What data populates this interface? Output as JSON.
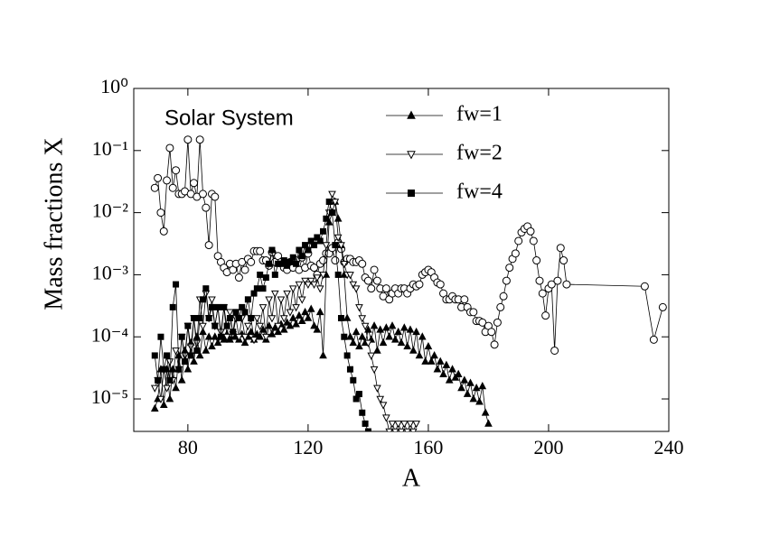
{
  "chart_data": {
    "type": "line",
    "xlabel": "A",
    "ylabel": "Mass fractions X",
    "xlim": [
      62,
      240
    ],
    "xticks": [
      80,
      120,
      160,
      200,
      240
    ],
    "ylim": [
      3e-06,
      1
    ],
    "yscale": "log",
    "yticks": [
      {
        "value": 1,
        "label": "10⁰"
      },
      {
        "value": 0.1,
        "label": "10⁻¹"
      },
      {
        "value": 0.01,
        "label": "10⁻²"
      },
      {
        "value": 0.001,
        "label": "10⁻³"
      },
      {
        "value": 0.0001,
        "label": "10⁻⁴"
      },
      {
        "value": 1e-05,
        "label": "10⁻⁵"
      }
    ],
    "series": [
      {
        "name": "Solar System",
        "color": "#000",
        "marker": "circle-open",
        "x": [
          69,
          70,
          71,
          72,
          73,
          74,
          75,
          76,
          77,
          78,
          79,
          80,
          81,
          82,
          83,
          84,
          85,
          86,
          87,
          88,
          89,
          90,
          91,
          92,
          93,
          94,
          95,
          96,
          97,
          98,
          99,
          100,
          101,
          102,
          103,
          104,
          105,
          106,
          107,
          108,
          109,
          110,
          111,
          112,
          113,
          114,
          115,
          116,
          117,
          118,
          119,
          120,
          121,
          122,
          123,
          124,
          125,
          126,
          127,
          128,
          129,
          130,
          131,
          132,
          133,
          134,
          135,
          136,
          137,
          138,
          139,
          140,
          141,
          142,
          143,
          144,
          145,
          146,
          147,
          148,
          149,
          150,
          151,
          152,
          153,
          154,
          155,
          156,
          157,
          158,
          159,
          160,
          161,
          162,
          163,
          164,
          165,
          166,
          167,
          168,
          169,
          170,
          171,
          172,
          173,
          174,
          175,
          176,
          177,
          178,
          179,
          180,
          181,
          182,
          183,
          184,
          185,
          186,
          187,
          188,
          189,
          190,
          191,
          192,
          193,
          194,
          195,
          196,
          197,
          198,
          199,
          200,
          201,
          202,
          203,
          204,
          205,
          206,
          232,
          235,
          238
        ],
        "values": [
          0.025,
          0.036,
          0.01,
          0.005,
          0.033,
          0.11,
          0.025,
          0.048,
          0.02,
          0.02,
          0.022,
          0.15,
          0.02,
          0.03,
          0.018,
          0.15,
          0.02,
          0.012,
          0.003,
          0.02,
          0.018,
          0.002,
          0.0016,
          0.0013,
          0.0011,
          0.0015,
          0.0012,
          0.0015,
          0.0009,
          0.0016,
          0.0012,
          0.0018,
          0.0016,
          0.0024,
          0.0024,
          0.0024,
          0.0017,
          0.0017,
          0.0014,
          0.0023,
          0.0016,
          0.002,
          0.0016,
          0.0013,
          0.0012,
          0.0016,
          0.0013,
          0.0017,
          0.0012,
          0.0019,
          0.0013,
          0.0022,
          0.0014,
          0.0013,
          0.001,
          0.0015,
          0.0017,
          0.0022,
          0.0022,
          0.0027,
          0.0017,
          0.0033,
          0.0026,
          0.0016,
          0.0018,
          0.0018,
          0.0016,
          0.0016,
          0.0017,
          0.0015,
          0.0009,
          0.0008,
          0.0006,
          0.0012,
          0.0008,
          0.0006,
          0.00045,
          0.0006,
          0.0004,
          0.0005,
          0.0006,
          0.0005,
          0.0006,
          0.0006,
          0.0005,
          0.0006,
          0.0007,
          0.00065,
          0.0007,
          0.001,
          0.0011,
          0.0012,
          0.0011,
          0.0009,
          0.00075,
          0.0007,
          0.0005,
          0.0004,
          0.0004,
          0.00045,
          0.0004,
          0.0004,
          0.0003,
          0.0004,
          0.0003,
          0.00025,
          0.00025,
          0.00018,
          0.00018,
          0.00017,
          0.00012,
          0.00015,
          0.00012,
          7.5e-05,
          0.00017,
          0.0003,
          0.00045,
          0.0008,
          0.0013,
          0.0018,
          0.0022,
          0.0035,
          0.0048,
          0.0055,
          0.006,
          0.005,
          0.0035,
          0.0017,
          0.0008,
          0.0005,
          0.00022,
          0.0006,
          0.0007,
          6e-05,
          0.0008,
          0.0027,
          0.0017,
          0.0007,
          0.00065,
          9e-05,
          0.0003
        ]
      },
      {
        "name": "fw=1",
        "color": "#000",
        "marker": "triangle-filled",
        "x": [
          69,
          70,
          71,
          72,
          73,
          74,
          75,
          76,
          77,
          78,
          79,
          80,
          81,
          82,
          83,
          84,
          85,
          86,
          87,
          88,
          89,
          90,
          91,
          92,
          93,
          94,
          95,
          96,
          97,
          98,
          99,
          100,
          101,
          102,
          103,
          104,
          105,
          106,
          107,
          108,
          109,
          110,
          111,
          112,
          113,
          114,
          115,
          116,
          117,
          118,
          119,
          120,
          121,
          122,
          123,
          124,
          125,
          126,
          127,
          128,
          129,
          130,
          131,
          132,
          133,
          134,
          135,
          136,
          137,
          138,
          139,
          140,
          141,
          142,
          143,
          144,
          145,
          146,
          147,
          148,
          149,
          150,
          151,
          152,
          153,
          154,
          155,
          156,
          157,
          158,
          159,
          160,
          161,
          162,
          163,
          164,
          165,
          166,
          167,
          168,
          169,
          170,
          171,
          172,
          173,
          174,
          175,
          176,
          177,
          178,
          179,
          180
        ],
        "values": [
          7e-06,
          1e-05,
          3e-05,
          8e-06,
          3e-05,
          1e-05,
          3e-05,
          1.5e-05,
          5e-05,
          2e-05,
          6e-05,
          3e-05,
          8e-05,
          4e-05,
          0.0001,
          5e-05,
          0.00012,
          6e-05,
          0.0001,
          7e-05,
          0.0001,
          8e-05,
          0.0001,
          9e-05,
          0.00011,
          9e-05,
          0.0001,
          0.0001,
          9e-05,
          0.00011,
          8e-05,
          0.0001,
          0.00012,
          9e-05,
          0.00011,
          0.0001,
          0.00013,
          9e-05,
          0.00015,
          0.00011,
          0.00014,
          0.00012,
          0.00016,
          0.00013,
          0.00017,
          0.00015,
          0.0002,
          0.00016,
          0.00022,
          0.00018,
          0.00025,
          0.0002,
          0.00028,
          0.00015,
          0.00013,
          0.00025,
          5e-05,
          0.001,
          0.007,
          0.01,
          0.015,
          0.008,
          0.003,
          0.001,
          0.0002,
          0.0001,
          8e-05,
          0.00012,
          7e-05,
          0.0001,
          8e-05,
          0.00013,
          9e-05,
          0.00015,
          6e-05,
          0.00013,
          8e-05,
          0.00014,
          0.0001,
          0.00015,
          9e-05,
          0.00012,
          8e-05,
          0.00014,
          7e-05,
          0.00013,
          6e-05,
          0.00012,
          5e-05,
          0.0001,
          4e-05,
          7e-05,
          4e-05,
          5e-05,
          3e-05,
          4e-05,
          2.5e-05,
          3.5e-05,
          2e-05,
          3e-05,
          2.2e-05,
          2.5e-05,
          1.5e-05,
          2e-05,
          1.2e-05,
          1.8e-05,
          1e-05,
          1.5e-05,
          9e-06,
          1.6e-05,
          6e-06,
          4e-06
        ]
      },
      {
        "name": "fw=2",
        "color": "#000",
        "marker": "triangle-open-down",
        "x": [
          69,
          70,
          71,
          72,
          73,
          74,
          75,
          76,
          77,
          78,
          79,
          80,
          81,
          82,
          83,
          84,
          85,
          86,
          87,
          88,
          89,
          90,
          91,
          92,
          93,
          94,
          95,
          96,
          97,
          98,
          99,
          100,
          101,
          102,
          103,
          104,
          105,
          106,
          107,
          108,
          109,
          110,
          111,
          112,
          113,
          114,
          115,
          116,
          117,
          118,
          119,
          120,
          121,
          122,
          123,
          124,
          125,
          126,
          127,
          128,
          129,
          130,
          131,
          132,
          133,
          134,
          135,
          136,
          137,
          138,
          139,
          140,
          141,
          142,
          143,
          144,
          145,
          146,
          147,
          148,
          149,
          150,
          151,
          152,
          153,
          154,
          155,
          156
        ],
        "values": [
          1.5e-05,
          2e-05,
          1e-05,
          3e-05,
          1.5e-05,
          4e-05,
          2e-05,
          6e-05,
          3e-05,
          0.0001,
          5e-05,
          0.00015,
          7e-05,
          0.0002,
          8e-05,
          0.0004,
          0.00015,
          0.0005,
          0.0002,
          0.0004,
          0.00015,
          0.0003,
          0.00012,
          0.0003,
          0.0001,
          0.00025,
          0.00011,
          0.0002,
          0.0001,
          0.0002,
          0.0001,
          0.00015,
          0.0002,
          9e-05,
          0.0002,
          0.00015,
          0.0003,
          0.0001,
          0.0004,
          0.0002,
          0.0005,
          0.00015,
          0.0004,
          0.0002,
          0.0005,
          0.00025,
          0.0006,
          0.0003,
          0.0007,
          0.0004,
          0.0008,
          0.0007,
          0.0008,
          0.0007,
          0.0009,
          0.0006,
          0.001,
          0.003,
          0.01,
          0.02,
          0.015,
          0.004,
          0.003,
          0.0015,
          0.001,
          0.001,
          0.0007,
          0.0006,
          0.0003,
          0.0002,
          0.00015,
          8e-05,
          5e-05,
          3e-05,
          1.5e-05,
          1e-05,
          8e-06,
          5e-06,
          3e-06,
          4e-06,
          3e-06,
          4e-06,
          3e-06,
          4e-06,
          3e-06,
          4e-06,
          3e-06,
          4e-06
        ]
      },
      {
        "name": "fw=4",
        "color": "#000",
        "marker": "square-filled",
        "x": [
          69,
          70,
          71,
          72,
          73,
          74,
          75,
          76,
          77,
          78,
          79,
          80,
          81,
          82,
          83,
          84,
          85,
          86,
          87,
          88,
          89,
          90,
          91,
          92,
          93,
          94,
          95,
          96,
          97,
          98,
          99,
          100,
          101,
          102,
          103,
          104,
          105,
          106,
          107,
          108,
          109,
          110,
          111,
          112,
          113,
          114,
          115,
          116,
          117,
          118,
          119,
          120,
          121,
          122,
          123,
          124,
          125,
          126,
          127,
          128,
          129,
          130,
          131,
          132,
          133,
          134,
          135,
          136,
          137,
          138,
          139,
          140
        ],
        "values": [
          5e-05,
          2e-05,
          0.0001,
          3e-05,
          5e-05,
          2e-05,
          0.0003,
          0.0007,
          3e-05,
          0.0001,
          4e-05,
          0.00015,
          5e-05,
          0.0002,
          6e-05,
          0.0002,
          0.0004,
          0.0006,
          0.0002,
          0.0003,
          0.00015,
          0.0003,
          0.0001,
          0.0003,
          0.00015,
          0.0002,
          0.00012,
          0.00025,
          0.0002,
          0.0003,
          0.00025,
          0.0004,
          0.0002,
          0.0005,
          0.0006,
          0.001,
          0.0006,
          0.0009,
          0.0015,
          0.0025,
          0.001,
          0.0015,
          0.0015,
          0.0017,
          0.0014,
          0.0016,
          0.0019,
          0.0015,
          0.0025,
          0.002,
          0.003,
          0.0025,
          0.0035,
          0.003,
          0.004,
          0.0035,
          0.005,
          0.008,
          0.015,
          0.01,
          0.003,
          0.001,
          0.0002,
          0.0001,
          5e-05,
          3e-05,
          2e-05,
          1e-05,
          1.2e-05,
          6e-06,
          4e-06,
          3e-06
        ]
      }
    ]
  }
}
